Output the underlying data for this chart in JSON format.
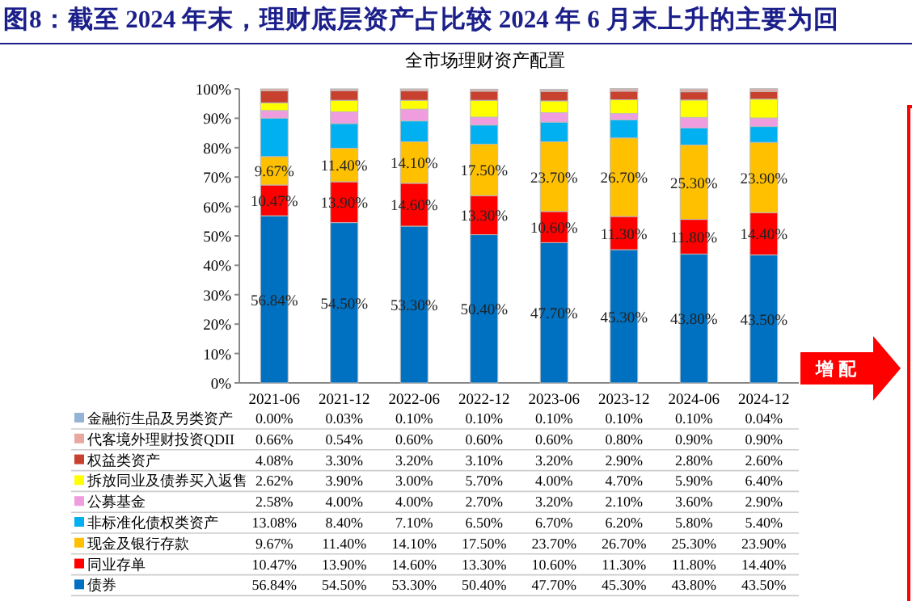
{
  "chart_data": {
    "type": "bar",
    "stacked": true,
    "title": "图8：截至 2024 年末，理财底层资产占比较 2024 年 6 月末上升的主要为回",
    "subtitle": "全市场理财资产配置",
    "categories": [
      "2021-06",
      "2021-12",
      "2022-06",
      "2022-12",
      "2023-06",
      "2023-12",
      "2024-06",
      "2024-12"
    ],
    "ylim": [
      0,
      100
    ],
    "yticks": [
      {
        "value": 0,
        "label": "0%"
      },
      {
        "value": 10,
        "label": "10%"
      },
      {
        "value": 20,
        "label": "20%"
      },
      {
        "value": 30,
        "label": "30%"
      },
      {
        "value": 40,
        "label": "40%"
      },
      {
        "value": 50,
        "label": "50%"
      },
      {
        "value": 60,
        "label": "60%"
      },
      {
        "value": 70,
        "label": "70%"
      },
      {
        "value": 80,
        "label": "80%"
      },
      {
        "value": 90,
        "label": "90%"
      },
      {
        "value": 100,
        "label": "100%"
      }
    ],
    "grid": false,
    "legend": "bottom",
    "annotations": [
      "增 配"
    ],
    "series": [
      {
        "name": "债券",
        "color": "#0070c0",
        "values": [
          56.84,
          54.5,
          53.3,
          50.4,
          47.7,
          45.3,
          43.8,
          43.5
        ],
        "value_labels": [
          "56.84%",
          "54.50%",
          "53.30%",
          "50.40%",
          "47.70%",
          "45.30%",
          "43.80%",
          "43.50%"
        ]
      },
      {
        "name": "同业存单",
        "color": "#ff0000",
        "values": [
          10.47,
          13.9,
          14.6,
          13.3,
          10.6,
          11.3,
          11.8,
          14.4
        ],
        "value_labels": [
          "10.47%",
          "13.90%",
          "14.60%",
          "13.30%",
          "10.60%",
          "11.30%",
          "11.80%",
          "14.40%"
        ]
      },
      {
        "name": "现金及银行存款",
        "color": "#ffc000",
        "values": [
          9.67,
          11.4,
          14.1,
          17.5,
          23.7,
          26.7,
          25.3,
          23.9
        ],
        "value_labels": [
          "9.67%",
          "11.40%",
          "14.10%",
          "17.50%",
          "23.70%",
          "26.70%",
          "25.30%",
          "23.90%"
        ]
      },
      {
        "name": "非标准化债权类资产",
        "color": "#00b0f0",
        "values": [
          13.08,
          8.4,
          7.1,
          6.5,
          6.7,
          6.2,
          5.8,
          5.4
        ],
        "value_labels": [
          "13.08%",
          "8.40%",
          "7.10%",
          "6.50%",
          "6.70%",
          "6.20%",
          "5.80%",
          "5.40%"
        ]
      },
      {
        "name": "公募基金",
        "color": "#f09de0",
        "values": [
          2.58,
          4.0,
          4.0,
          2.7,
          3.2,
          2.1,
          3.6,
          2.9
        ],
        "value_labels": [
          "2.58%",
          "4.00%",
          "4.00%",
          "2.70%",
          "3.20%",
          "2.10%",
          "3.60%",
          "2.90%"
        ]
      },
      {
        "name": "拆放同业及债券买入返售",
        "color": "#ffff00",
        "values": [
          2.62,
          3.9,
          3.0,
          5.7,
          4.0,
          4.7,
          5.9,
          6.4
        ],
        "value_labels": [
          "2.62%",
          "3.90%",
          "3.00%",
          "5.70%",
          "4.00%",
          "4.70%",
          "5.90%",
          "6.40%"
        ]
      },
      {
        "name": "权益类资产",
        "color": "#c8412f",
        "values": [
          4.08,
          3.3,
          3.2,
          3.1,
          3.2,
          2.9,
          2.8,
          2.6
        ],
        "value_labels": [
          "4.08%",
          "3.30%",
          "3.20%",
          "3.10%",
          "3.20%",
          "2.90%",
          "2.80%",
          "2.60%"
        ]
      },
      {
        "name": "代客境外理财投资QDII",
        "color": "#e8a8a0",
        "values": [
          0.66,
          0.54,
          0.6,
          0.6,
          0.6,
          0.8,
          0.9,
          0.9
        ],
        "value_labels": [
          "0.66%",
          "0.54%",
          "0.60%",
          "0.60%",
          "0.60%",
          "0.80%",
          "0.90%",
          "0.90%"
        ]
      },
      {
        "name": "金融衍生品及另类资产",
        "color": "#95b3d7",
        "values": [
          0.0,
          0.03,
          0.1,
          0.1,
          0.1,
          0.1,
          0.1,
          0.04
        ],
        "value_labels": [
          "0.00%",
          "0.03%",
          "0.10%",
          "0.10%",
          "0.10%",
          "0.10%",
          "0.10%",
          "0.04%"
        ]
      }
    ]
  }
}
